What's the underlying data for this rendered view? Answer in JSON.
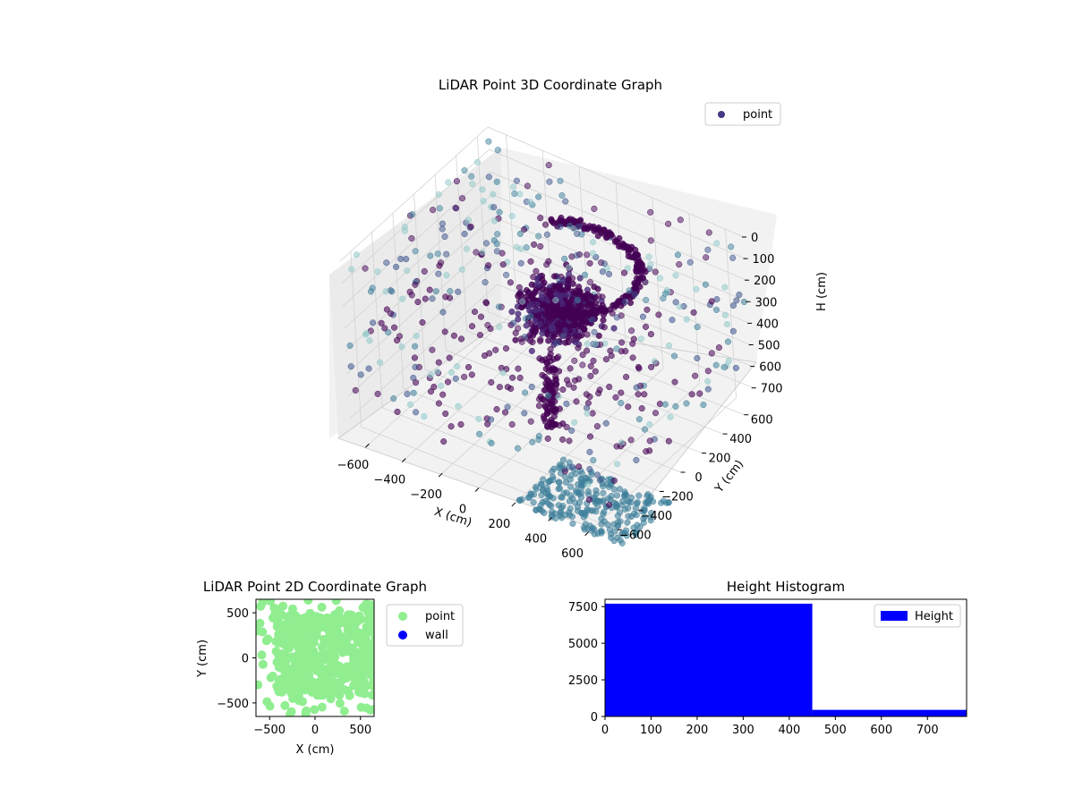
{
  "colors": {
    "point_dark": "#440154",
    "point_mid": "#3b528b",
    "point_teal": "#3e7f9a",
    "point_light": "#8fc8c8",
    "scatter2d_point": "#90ee90",
    "scatter2d_wall": "#0000ff",
    "hist_bar": "#0000ff",
    "pane": "#f2f2f2",
    "grid": "#cfcfcf"
  },
  "chart_data": [
    {
      "type": "scatter",
      "projection": "3d",
      "title": "LiDAR Point 3D Coordinate Graph",
      "xlabel": "X (cm)",
      "ylabel": "Y (cm)",
      "zlabel": "H (cm)",
      "xlim": [
        -700,
        700
      ],
      "ylim": [
        -700,
        700
      ],
      "zlim": [
        0,
        780
      ],
      "z_inverted": true,
      "x_ticks": [
        "−600",
        "−400",
        "−200",
        "0",
        "200",
        "400",
        "600"
      ],
      "y_ticks": [
        "−600",
        "−400",
        "−200",
        "0",
        "200",
        "400",
        "600"
      ],
      "z_ticks": [
        "0",
        "100",
        "200",
        "300",
        "400",
        "500",
        "600",
        "700"
      ],
      "legend": {
        "position": "upper-right",
        "entries": [
          "point"
        ]
      },
      "grid": true,
      "series": [
        {
          "name": "point",
          "description_of_shape": "dense cluster near center at H 300-450, ring at H~150, scattered walls, dense floor H~780",
          "cluster": {
            "x_range": [
              -150,
              150
            ],
            "y_range": [
              -150,
              150
            ],
            "z_range": [
              300,
              450
            ]
          },
          "ring": {
            "radius": 380,
            "z": 150
          },
          "floor": {
            "z": 780
          }
        }
      ]
    },
    {
      "type": "scatter",
      "title": "LiDAR Point 2D Coordinate Graph",
      "xlabel": "X (cm)",
      "ylabel": "Y (cm)",
      "xlim": [
        -650,
        650
      ],
      "ylim": [
        -650,
        650
      ],
      "x_ticks": [
        "−500",
        "0",
        "500"
      ],
      "y_ticks": [
        "−500",
        "0",
        "500"
      ],
      "legend": {
        "position": "outside-right",
        "entries": [
          "point",
          "wall"
        ]
      },
      "series": [
        {
          "name": "point",
          "x_range": [
            -650,
            650
          ],
          "y_range": [
            -650,
            650
          ]
        },
        {
          "name": "wall",
          "values": []
        }
      ]
    },
    {
      "type": "bar",
      "subtype": "histogram",
      "title": "Height Histogram",
      "xlim": [
        0,
        785
      ],
      "ylim": [
        0,
        8000
      ],
      "x_ticks": [
        "0",
        "100",
        "200",
        "300",
        "400",
        "500",
        "600",
        "700"
      ],
      "y_ticks": [
        "0",
        "2500",
        "5000",
        "7500"
      ],
      "legend": {
        "position": "upper-right",
        "entries": [
          "Height"
        ]
      },
      "bins": [
        {
          "start": 0,
          "end": 450,
          "count": 7700
        },
        {
          "start": 450,
          "end": 785,
          "count": 450
        }
      ]
    }
  ]
}
